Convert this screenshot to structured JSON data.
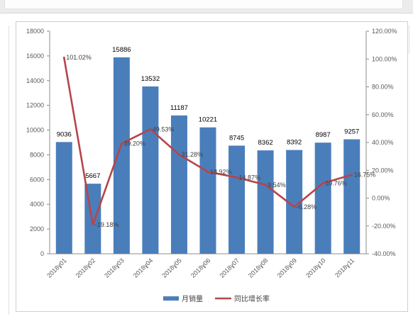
{
  "chart_data": {
    "type": "bar",
    "title": "",
    "xlabel": "",
    "ylabel": "",
    "categories": [
      "2018ɣ01",
      "2018ɣ02",
      "2018ɣ03",
      "2018ɣ04",
      "2018ɣ05",
      "2018ɣ06",
      "2018ɣ07",
      "2018ɣ08",
      "2018ɣ09",
      "2018ɣ10",
      "2018ɣ11"
    ],
    "series": [
      {
        "name": "月销量",
        "type": "bar",
        "axis": "left",
        "color": "#4a7ebb",
        "values": [
          9036,
          5667,
          15886,
          13532,
          11187,
          10221,
          8745,
          8362,
          8392,
          8987,
          9257
        ],
        "labels": [
          "9036",
          "5667",
          "15886",
          "13532",
          "11187",
          "10221",
          "8745",
          "8362",
          "8392",
          "8987",
          "9257"
        ]
      },
      {
        "name": "同比增长率",
        "type": "line",
        "axis": "right",
        "color": "#b5454a",
        "values": [
          101.02,
          -19.18,
          39.2,
          49.53,
          31.28,
          18.92,
          14.87,
          9.54,
          -6.28,
          10.76,
          16.75
        ],
        "labels": [
          "101.02%",
          "-19.18%",
          "39.20%",
          "49.53%",
          "31.28%",
          "18.92%",
          "14.87%",
          "9.54%",
          "-6.28%",
          "10.76%",
          "16.75%"
        ]
      }
    ],
    "ylim": [
      0,
      18000
    ],
    "yticks": [
      "0",
      "2000",
      "4000",
      "6000",
      "8000",
      "10000",
      "12000",
      "14000",
      "16000",
      "18000"
    ],
    "y2lim": [
      -40,
      120
    ],
    "y2ticks": [
      "-40.00%",
      "-20.00%",
      "0.00%",
      "20.00%",
      "40.00%",
      "60.00%",
      "80.00%",
      "100.00%",
      "120.00%"
    ],
    "grid": false,
    "legend": "bottom"
  }
}
